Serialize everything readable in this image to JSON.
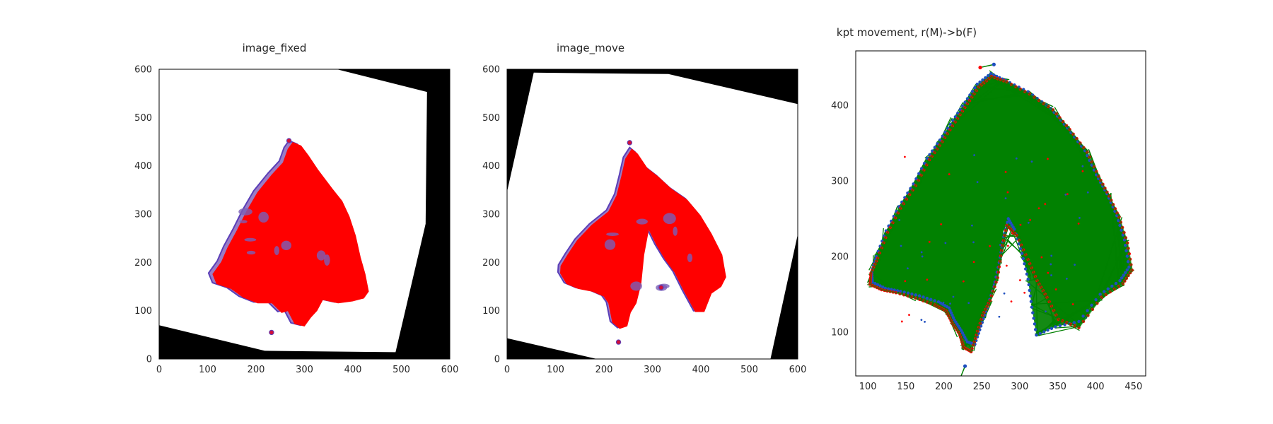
{
  "chart_data": [
    {
      "type": "image",
      "title": "image_fixed",
      "xlim": [
        0,
        600
      ],
      "ylim": [
        600,
        0
      ],
      "xticks": [
        0,
        100,
        200,
        300,
        400,
        500,
        600
      ],
      "yticks": [
        0,
        100,
        200,
        300,
        400,
        500,
        600
      ],
      "grid": false,
      "background_polygon": [
        [
          0,
          70
        ],
        [
          218,
          17
        ],
        [
          488,
          14
        ],
        [
          550,
          280
        ],
        [
          553,
          553
        ],
        [
          355,
          603
        ],
        [
          0,
          603
        ]
      ],
      "tissue_outline": [
        [
          110,
          158
        ],
        [
          140,
          148
        ],
        [
          165,
          130
        ],
        [
          195,
          118
        ],
        [
          225,
          118
        ],
        [
          245,
          98
        ],
        [
          258,
          102
        ],
        [
          272,
          75
        ],
        [
          292,
          70
        ],
        [
          305,
          88
        ],
        [
          318,
          102
        ],
        [
          330,
          125
        ],
        [
          362,
          118
        ],
        [
          392,
          122
        ],
        [
          415,
          128
        ],
        [
          425,
          142
        ],
        [
          418,
          178
        ],
        [
          408,
          213
        ],
        [
          398,
          258
        ],
        [
          385,
          298
        ],
        [
          370,
          330
        ],
        [
          350,
          355
        ],
        [
          320,
          395
        ],
        [
          300,
          425
        ],
        [
          285,
          445
        ],
        [
          268,
          452
        ],
        [
          258,
          438
        ],
        [
          248,
          410
        ],
        [
          225,
          385
        ],
        [
          195,
          348
        ],
        [
          172,
          308
        ],
        [
          152,
          268
        ],
        [
          133,
          233
        ],
        [
          120,
          203
        ],
        [
          102,
          178
        ]
      ],
      "keypoints": [
        [
          232,
          55
        ],
        [
          268,
          452
        ]
      ]
    },
    {
      "type": "image",
      "title": "image_move",
      "xlim": [
        0,
        600
      ],
      "ylim": [
        600,
        0
      ],
      "xticks": [
        0,
        100,
        200,
        300,
        400,
        500,
        600
      ],
      "yticks": [
        0,
        100,
        200,
        300,
        400,
        500,
        600
      ],
      "grid": false,
      "background_polygon": [
        [
          0,
          43
        ],
        [
          198,
          -3
        ],
        [
          543,
          -3
        ],
        [
          600,
          258
        ],
        [
          600,
          528
        ],
        [
          333,
          590
        ],
        [
          55,
          593
        ],
        [
          -3,
          333
        ]
      ],
      "tissue_outline": [
        [
          105,
          180
        ],
        [
          118,
          158
        ],
        [
          142,
          148
        ],
        [
          172,
          142
        ],
        [
          195,
          132
        ],
        [
          205,
          118
        ],
        [
          213,
          78
        ],
        [
          228,
          65
        ],
        [
          243,
          70
        ],
        [
          250,
          98
        ],
        [
          262,
          118
        ],
        [
          272,
          158
        ],
        [
          278,
          218
        ],
        [
          288,
          272
        ],
        [
          305,
          238
        ],
        [
          323,
          208
        ],
        [
          342,
          182
        ],
        [
          362,
          142
        ],
        [
          385,
          100
        ],
        [
          403,
          100
        ],
        [
          418,
          138
        ],
        [
          438,
          152
        ],
        [
          448,
          172
        ],
        [
          440,
          218
        ],
        [
          418,
          262
        ],
        [
          395,
          300
        ],
        [
          368,
          332
        ],
        [
          335,
          355
        ],
        [
          308,
          380
        ],
        [
          285,
          398
        ],
        [
          265,
          428
        ],
        [
          253,
          438
        ],
        [
          240,
          418
        ],
        [
          232,
          382
        ],
        [
          222,
          342
        ],
        [
          205,
          308
        ],
        [
          170,
          280
        ],
        [
          140,
          248
        ],
        [
          120,
          218
        ],
        [
          106,
          195
        ]
      ],
      "keypoints": [
        [
          230,
          35
        ],
        [
          318,
          148
        ],
        [
          253,
          448
        ]
      ]
    },
    {
      "type": "scatter",
      "title": "kpt movement, r(M)->b(F)",
      "xlim": [
        84,
        466
      ],
      "ylim": [
        472,
        42
      ],
      "xticks": [
        100,
        150,
        200,
        250,
        300,
        350,
        400,
        450
      ],
      "yticks": [
        100,
        200,
        300,
        400
      ],
      "grid": false,
      "series": [
        {
          "color": "#ff0000",
          "role": "moving keypoints"
        },
        {
          "color": "#1f4fbf",
          "role": "fixed keypoints"
        },
        {
          "color": "#008000",
          "role": "movement lines"
        }
      ],
      "moving_outline": [
        [
          103,
          163
        ],
        [
          118,
          156
        ],
        [
          137,
          152
        ],
        [
          163,
          145
        ],
        [
          188,
          136
        ],
        [
          203,
          128
        ],
        [
          211,
          112
        ],
        [
          221,
          97
        ],
        [
          226,
          80
        ],
        [
          236,
          74
        ],
        [
          243,
          96
        ],
        [
          251,
          122
        ],
        [
          261,
          142
        ],
        [
          271,
          172
        ],
        [
          276,
          208
        ],
        [
          283,
          241
        ],
        [
          296,
          228
        ],
        [
          311,
          196
        ],
        [
          323,
          168
        ],
        [
          336,
          146
        ],
        [
          351,
          117
        ],
        [
          378,
          106
        ],
        [
          408,
          146
        ],
        [
          436,
          164
        ],
        [
          448,
          182
        ],
        [
          442,
          218
        ],
        [
          431,
          252
        ],
        [
          418,
          280
        ],
        [
          404,
          306
        ],
        [
          389,
          338
        ],
        [
          366,
          368
        ],
        [
          344,
          394
        ],
        [
          313,
          415
        ],
        [
          283,
          431
        ],
        [
          263,
          438
        ],
        [
          246,
          424
        ],
        [
          231,
          402
        ],
        [
          215,
          378
        ],
        [
          198,
          352
        ],
        [
          181,
          328
        ],
        [
          163,
          294
        ],
        [
          143,
          264
        ],
        [
          126,
          232
        ],
        [
          113,
          198
        ],
        [
          104,
          178
        ]
      ],
      "fixed_outline": [
        [
          106,
          166
        ],
        [
          123,
          158
        ],
        [
          143,
          154
        ],
        [
          168,
          148
        ],
        [
          193,
          140
        ],
        [
          207,
          132
        ],
        [
          214,
          116
        ],
        [
          223,
          102
        ],
        [
          231,
          87
        ],
        [
          241,
          84
        ],
        [
          249,
          108
        ],
        [
          257,
          132
        ],
        [
          266,
          160
        ],
        [
          273,
          192
        ],
        [
          279,
          226
        ],
        [
          285,
          250
        ],
        [
          293,
          236
        ],
        [
          303,
          204
        ],
        [
          311,
          170
        ],
        [
          316,
          133
        ],
        [
          322,
          96
        ],
        [
          347,
          107
        ],
        [
          378,
          114
        ],
        [
          406,
          150
        ],
        [
          432,
          168
        ],
        [
          444,
          186
        ],
        [
          438,
          222
        ],
        [
          428,
          254
        ],
        [
          415,
          283
        ],
        [
          401,
          308
        ],
        [
          386,
          340
        ],
        [
          363,
          370
        ],
        [
          341,
          396
        ],
        [
          311,
          418
        ],
        [
          281,
          433
        ],
        [
          262,
          442
        ],
        [
          244,
          428
        ],
        [
          228,
          404
        ],
        [
          212,
          380
        ],
        [
          195,
          354
        ],
        [
          178,
          330
        ],
        [
          160,
          296
        ],
        [
          141,
          266
        ],
        [
          124,
          234
        ],
        [
          111,
          200
        ],
        [
          105,
          180
        ]
      ],
      "outlier_moves": [
        {
          "from": [
            222,
            40
          ],
          "to": [
            228,
            55
          ]
        },
        {
          "from": [
            248,
            450
          ],
          "to": [
            266,
            454
          ]
        }
      ]
    }
  ]
}
